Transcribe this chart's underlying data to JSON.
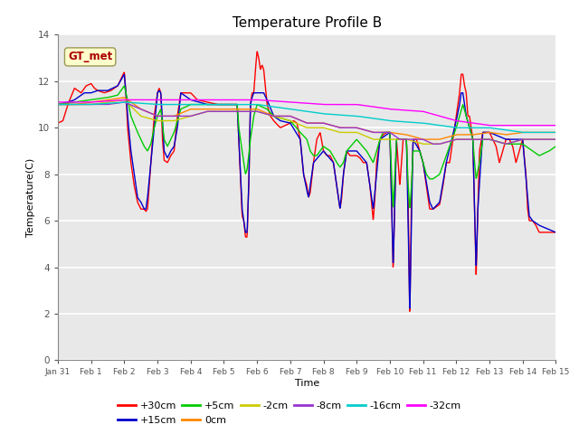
{
  "title": "Temperature Profile B",
  "xlabel": "Time",
  "ylabel": "Temperature(C)",
  "ylim": [
    0,
    14
  ],
  "xlim": [
    0,
    15
  ],
  "xtick_labels": [
    "Jan 31",
    "Feb 1",
    "Feb 2",
    "Feb 3",
    "Feb 4",
    "Feb 5",
    "Feb 6",
    "Feb 7",
    "Feb 8",
    "Feb 9",
    "Feb 10",
    "Feb 11",
    "Feb 12",
    "Feb 13",
    "Feb 14",
    "Feb 15"
  ],
  "ytick_vals": [
    0,
    2,
    4,
    6,
    8,
    10,
    12,
    14
  ],
  "series": [
    {
      "label": "+30cm",
      "color": "#FF0000"
    },
    {
      "label": "+15cm",
      "color": "#0000CC"
    },
    {
      "label": "+5cm",
      "color": "#00CC00"
    },
    {
      "label": "0cm",
      "color": "#FF8800"
    },
    {
      "label": "-2cm",
      "color": "#CCCC00"
    },
    {
      "label": "-8cm",
      "color": "#9933CC"
    },
    {
      "label": "-16cm",
      "color": "#00CCCC"
    },
    {
      "label": "-32cm",
      "color": "#FF00FF"
    }
  ],
  "gt_met_text": "GT_met",
  "gt_met_color": "#AA0000",
  "bg_color": "#E8E8E8",
  "title_fontsize": 11,
  "axis_fontsize": 8,
  "legend_fontsize": 8,
  "tick_fontsize": 7.5
}
